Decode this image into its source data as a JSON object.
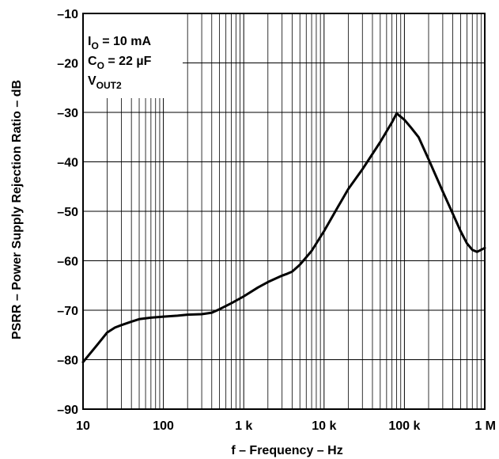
{
  "chart_data": {
    "type": "line",
    "title": "",
    "xlabel": "f – Frequency – Hz",
    "ylabel": "PSRR – Power Supply Rejection Ratio – dB",
    "xscale": "log",
    "xlim": [
      10,
      1000000
    ],
    "ylim": [
      -90,
      -10
    ],
    "grid": true,
    "x_ticks": [
      {
        "value": 10,
        "label": "10"
      },
      {
        "value": 100,
        "label": "100"
      },
      {
        "value": 1000,
        "label": "1 k"
      },
      {
        "value": 10000,
        "label": "10 k"
      },
      {
        "value": 100000,
        "label": "100 k"
      },
      {
        "value": 1000000,
        "label": "1 M"
      }
    ],
    "y_ticks": [
      {
        "value": -10,
        "label": "–10"
      },
      {
        "value": -20,
        "label": "–20"
      },
      {
        "value": -30,
        "label": "–30"
      },
      {
        "value": -40,
        "label": "–40"
      },
      {
        "value": -50,
        "label": "–50"
      },
      {
        "value": -60,
        "label": "–60"
      },
      {
        "value": -70,
        "label": "–70"
      },
      {
        "value": -80,
        "label": "–80"
      },
      {
        "value": -90,
        "label": "–90"
      }
    ],
    "annotation": {
      "line1": {
        "prefix": "I",
        "sub": "O",
        "text": " = 10 mA"
      },
      "line2": {
        "prefix": "C",
        "sub": "O",
        "text": " = 22 µF"
      },
      "line3": {
        "prefix": "V",
        "sub": "OUT2",
        "text": ""
      }
    },
    "series": [
      {
        "color": "#000000",
        "x": [
          10,
          15,
          20,
          25,
          30,
          40,
          50,
          70,
          100,
          150,
          200,
          300,
          400,
          500,
          700,
          1000,
          1500,
          2000,
          3000,
          3500,
          4000,
          5000,
          7000,
          10000,
          15000,
          20000,
          30000,
          50000,
          70000,
          80000,
          100000,
          120000,
          150000,
          200000,
          300000,
          400000,
          500000,
          600000,
          700000,
          800000,
          1000000
        ],
        "y": [
          -80.5,
          -77,
          -74.5,
          -73.5,
          -73,
          -72.3,
          -71.8,
          -71.5,
          -71.3,
          -71.1,
          -70.9,
          -70.8,
          -70.5,
          -69.8,
          -68.6,
          -67.2,
          -65.4,
          -64.3,
          -63,
          -62.6,
          -62.2,
          -60.8,
          -58,
          -54,
          -49,
          -45.5,
          -41.5,
          -36,
          -32,
          -30.2,
          -31.5,
          -33,
          -35,
          -39.5,
          -46,
          -50.5,
          -54,
          -56.5,
          -57.8,
          -58.2,
          -57.4
        ]
      }
    ]
  }
}
